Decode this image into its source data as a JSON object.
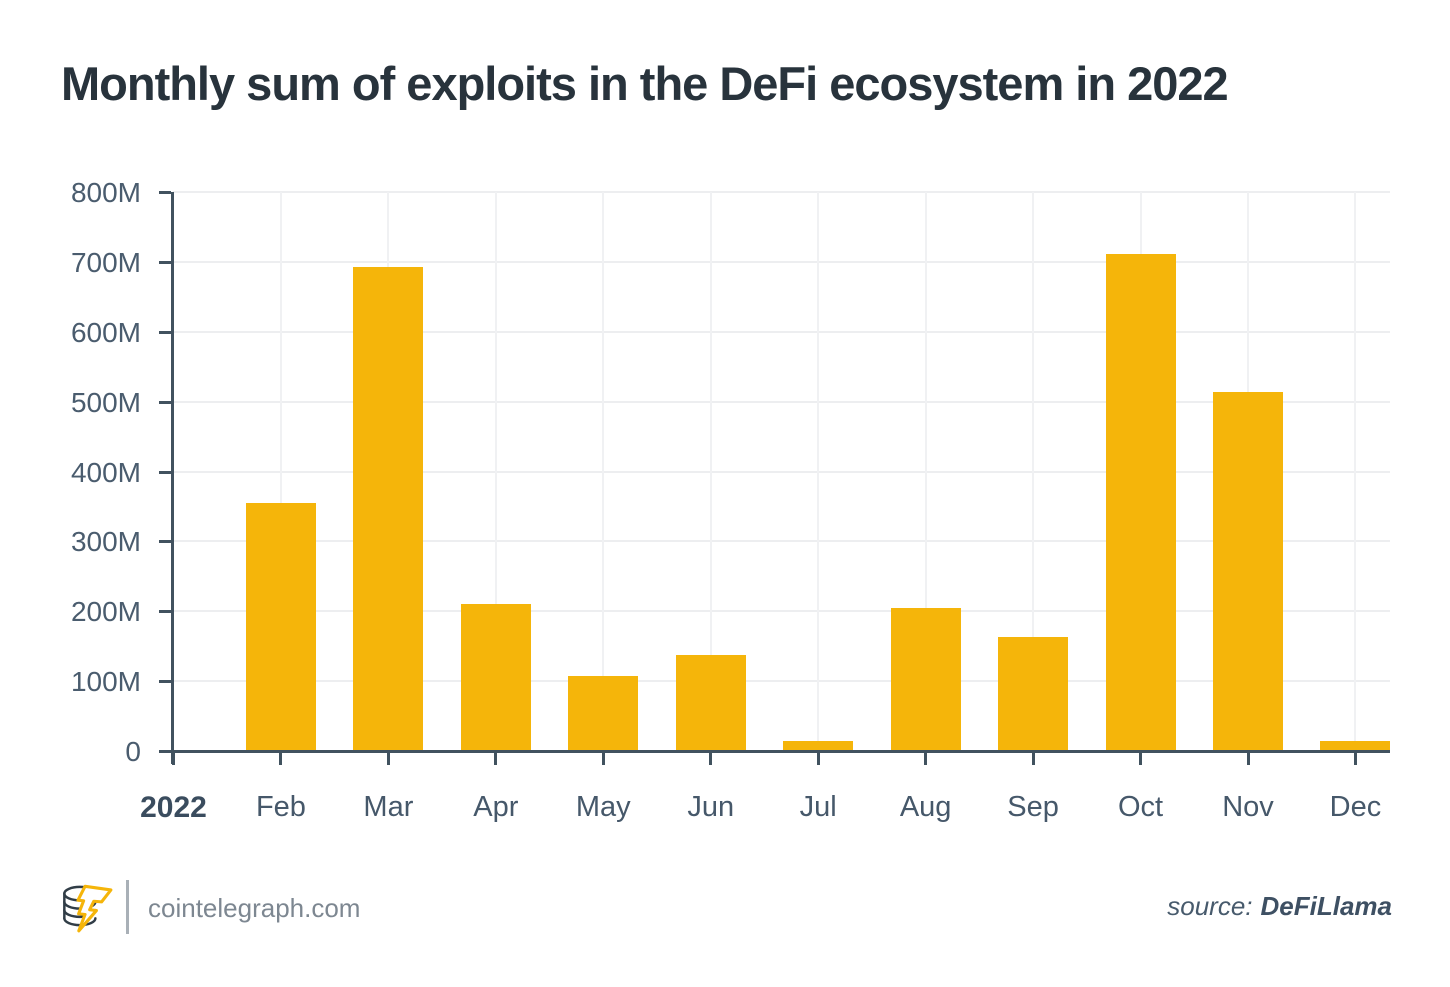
{
  "title": "Monthly sum of exploits in the DeFi ecosystem in 2022",
  "chart_data": {
    "type": "bar",
    "title": "Monthly sum of exploits in the DeFi ecosystem in 2022",
    "categories": [
      "2022",
      "Feb",
      "Mar",
      "Apr",
      "May",
      "Jun",
      "Jul",
      "Aug",
      "Sep",
      "Oct",
      "Nov",
      "Dec"
    ],
    "values": [
      0,
      355,
      692,
      211,
      108,
      138,
      15,
      204,
      163,
      711,
      514,
      15
    ],
    "value_unit": "USD millions",
    "xlabel": "",
    "ylabel": "",
    "ylim": [
      0,
      800
    ],
    "ytick_step": 100,
    "ytick_labels": [
      "800M",
      "700M",
      "600M",
      "500M",
      "400M",
      "300M",
      "200M",
      "100M",
      "0"
    ],
    "grid": true,
    "legend": "none",
    "bar_color": "#F5B50A",
    "first_x_label_bold": true
  },
  "footer": {
    "site": "cointelegraph.com",
    "source_label": "source:",
    "source_value": "DeFiLlama",
    "logo": "cointelegraph-coin-lightning-logo"
  },
  "colors": {
    "background": "#FFFFFF",
    "bar": "#F5B50A",
    "title_text": "#28333C",
    "axis_line": "#41525F",
    "axis_label": "#4A5C6E",
    "gridline": "#EDEEF0",
    "footer_site_text": "#7D8791",
    "source_text": "#3E5063"
  }
}
